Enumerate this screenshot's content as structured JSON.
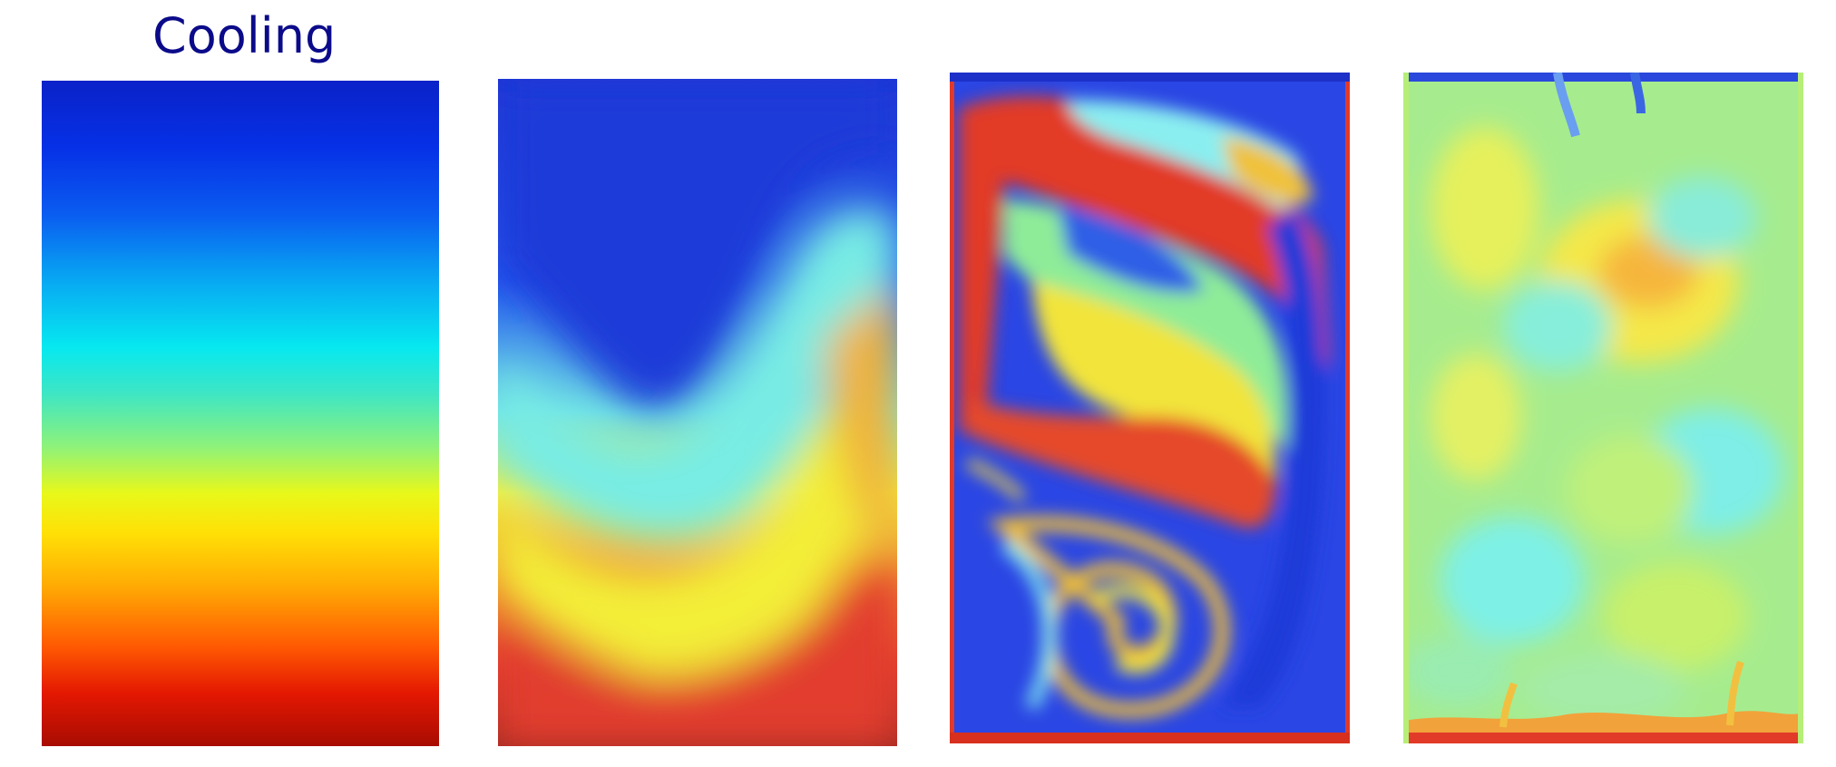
{
  "header": {
    "title": "Cooling"
  },
  "panels": [
    {
      "id": "panel-1",
      "label": ""
    },
    {
      "id": "panel-2",
      "label": ""
    },
    {
      "id": "panel-3",
      "label": ""
    },
    {
      "id": "panel-4",
      "label": ""
    }
  ],
  "colors": {
    "title": "#0b0b8a",
    "cold": "#0a22c8",
    "cool": "#06e8f0",
    "mid": "#8ef27a",
    "warm": "#ffe006",
    "hot": "#e41802",
    "background": "#ffffff"
  }
}
